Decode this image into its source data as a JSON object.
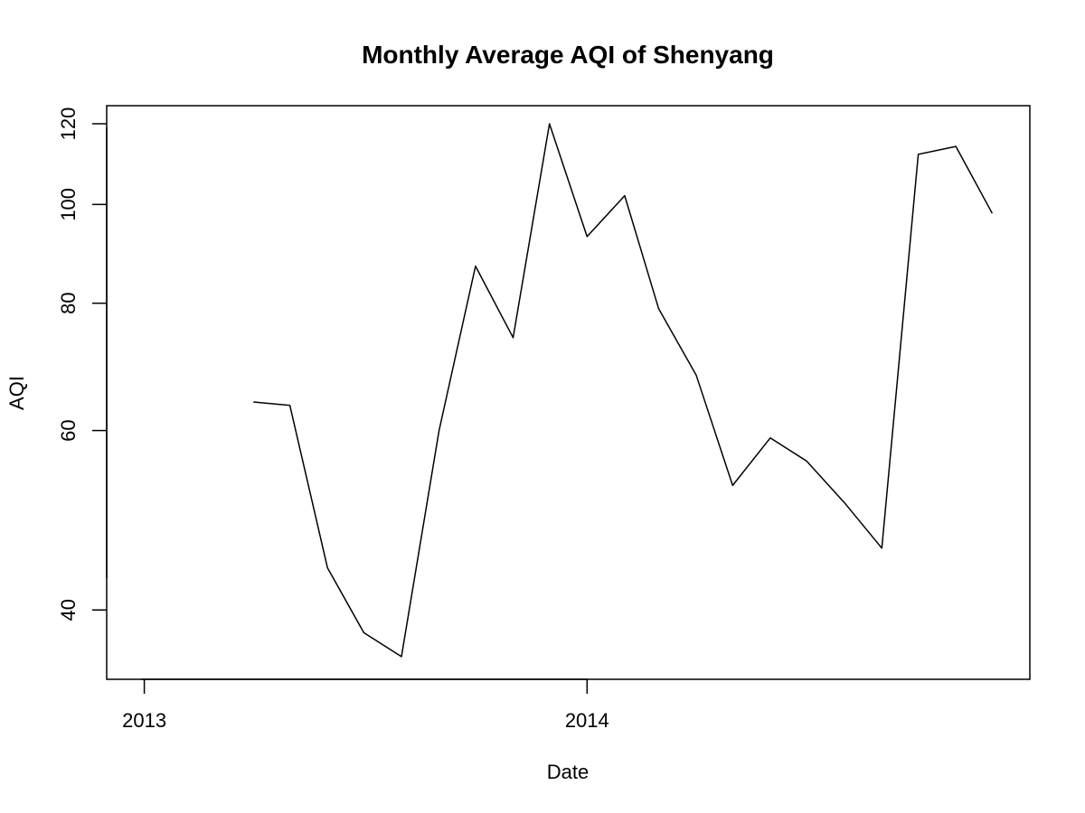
{
  "chart_data": {
    "type": "line",
    "title": "Monthly Average AQI of Shenyang",
    "xlabel": "Date",
    "ylabel": "AQI",
    "x_scale": "date",
    "y_scale": "log",
    "xlim": [
      "2012-12-01",
      "2015-01-01"
    ],
    "ylim": [
      34.2,
      125
    ],
    "x_ticks": [
      {
        "date": "2013-01-01",
        "label": "2013"
      },
      {
        "date": "2014-01-01",
        "label": "2014"
      }
    ],
    "y_ticks": [
      40,
      60,
      80,
      100,
      120
    ],
    "grid": false,
    "legend": "none",
    "color": "#000000",
    "x": [
      "2013-04-01",
      "2013-05-01",
      "2013-06-01",
      "2013-07-01",
      "2013-08-01",
      "2013-09-01",
      "2013-10-01",
      "2013-11-01",
      "2013-12-01",
      "2014-01-01",
      "2014-02-01",
      "2014-03-01",
      "2014-04-01",
      "2014-05-01",
      "2014-06-01",
      "2014-07-01",
      "2014-08-01",
      "2014-09-01",
      "2014-10-01",
      "2014-11-01",
      "2014-12-01"
    ],
    "values": [
      64,
      63.5,
      44,
      38,
      36,
      60,
      87,
      74,
      120,
      93,
      102,
      79,
      68,
      53,
      59,
      56,
      51,
      46,
      112,
      114,
      98
    ]
  }
}
